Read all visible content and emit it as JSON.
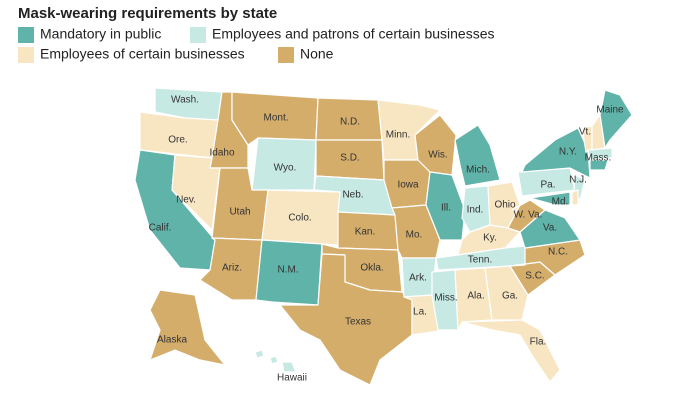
{
  "title": "Mask-wearing requirements by state",
  "legend": [
    {
      "name": "Mandatory in public",
      "color": "#5fb3a8"
    },
    {
      "name": "Employees and patrons of certain businesses",
      "color": "#c6e9e3"
    },
    {
      "name": "Employees of certain businesses",
      "color": "#f8e6c3"
    },
    {
      "name": "None",
      "color": "#d5ad6b"
    }
  ],
  "states": [
    {
      "label": "Wash.",
      "category": 1
    },
    {
      "label": "Ore.",
      "category": 2
    },
    {
      "label": "Calif.",
      "category": 0
    },
    {
      "label": "Idaho",
      "category": 3
    },
    {
      "label": "Nev.",
      "category": 2
    },
    {
      "label": "Mont.",
      "category": 3
    },
    {
      "label": "Wyo.",
      "category": 1
    },
    {
      "label": "Utah",
      "category": 3
    },
    {
      "label": "Colo.",
      "category": 2
    },
    {
      "label": "Ariz.",
      "category": 3
    },
    {
      "label": "N.M.",
      "category": 0
    },
    {
      "label": "N.D.",
      "category": 3
    },
    {
      "label": "S.D.",
      "category": 3
    },
    {
      "label": "Neb.",
      "category": 1
    },
    {
      "label": "Kan.",
      "category": 3
    },
    {
      "label": "Okla.",
      "category": 3
    },
    {
      "label": "Texas",
      "category": 3
    },
    {
      "label": "Minn.",
      "category": 2
    },
    {
      "label": "Iowa",
      "category": 3
    },
    {
      "label": "Wis.",
      "category": 3
    },
    {
      "label": "Mo.",
      "category": 3
    },
    {
      "label": "Ark.",
      "category": 1
    },
    {
      "label": "La.",
      "category": 2
    },
    {
      "label": "Ill.",
      "category": 0
    },
    {
      "label": "Ind.",
      "category": 1
    },
    {
      "label": "Mich.",
      "category": 0
    },
    {
      "label": "Ohio",
      "category": 2
    },
    {
      "label": "Ky.",
      "category": 2
    },
    {
      "label": "Tenn.",
      "category": 1
    },
    {
      "label": "Miss.",
      "category": 1
    },
    {
      "label": "Ala.",
      "category": 2
    },
    {
      "label": "Ga.",
      "category": 2
    },
    {
      "label": "Fla.",
      "category": 2
    },
    {
      "label": "S.C.",
      "category": 3
    },
    {
      "label": "N.C.",
      "category": 3
    },
    {
      "label": "Va.",
      "category": 0
    },
    {
      "label": "W. Va.",
      "category": 3
    },
    {
      "label": "Pa.",
      "category": 1
    },
    {
      "label": "N.Y.",
      "category": 0
    },
    {
      "label": "Md.",
      "category": 0
    },
    {
      "label": "N.J.",
      "category": 1
    },
    {
      "label": "Vt.",
      "category": 2
    },
    {
      "label": "Maine",
      "category": 0
    },
    {
      "label": "Mass.",
      "category": 1
    },
    {
      "label": "Alaska",
      "category": 3
    },
    {
      "label": "Hawaii",
      "category": 1
    }
  ]
}
